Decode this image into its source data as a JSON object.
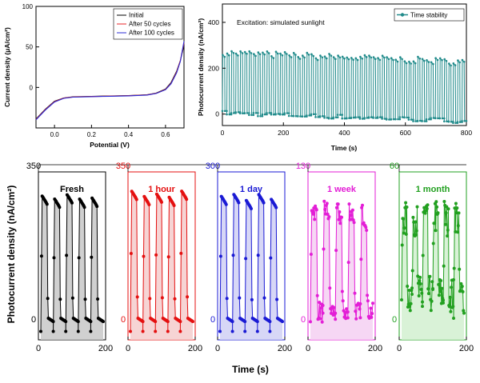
{
  "chart_data": [
    {
      "type": "line",
      "xlabel": "Potential (V)",
      "ylabel": "Current density (μA/cm²)",
      "xlim": [
        -0.1,
        0.7
      ],
      "ylim": [
        -50,
        100
      ],
      "xticks": [
        "0.0",
        "0.2",
        "0.4",
        "0.6"
      ],
      "xtick_values": [
        0.0,
        0.2,
        0.4,
        0.6
      ],
      "yticks": [
        "0",
        "50",
        "100"
      ],
      "ytick_values": [
        0,
        50,
        100
      ],
      "legend_position": "top-right",
      "series": [
        {
          "name": "Initial",
          "color": "#000000",
          "x": [
            -0.1,
            -0.05,
            0.0,
            0.05,
            0.1,
            0.2,
            0.3,
            0.4,
            0.5,
            0.55,
            0.6,
            0.63,
            0.66,
            0.68,
            0.7
          ],
          "y": [
            -39,
            -27,
            -17,
            -13,
            -11.5,
            -11,
            -10.5,
            -10,
            -9,
            -7,
            -2,
            6,
            20,
            33,
            52
          ]
        },
        {
          "name": "After 50 cycles",
          "color": "#e8262a",
          "x": [
            -0.1,
            -0.05,
            0.0,
            0.05,
            0.1,
            0.2,
            0.3,
            0.4,
            0.5,
            0.55,
            0.6,
            0.63,
            0.66,
            0.68,
            0.7
          ],
          "y": [
            -39.5,
            -27.5,
            -17.5,
            -13.2,
            -11.8,
            -11.2,
            -10.7,
            -10.2,
            -9.2,
            -7.3,
            -2.5,
            5,
            19,
            33,
            55
          ]
        },
        {
          "name": "After 100 cycles",
          "color": "#2b2bd6",
          "x": [
            -0.1,
            -0.05,
            0.0,
            0.05,
            0.1,
            0.2,
            0.3,
            0.4,
            0.5,
            0.55,
            0.6,
            0.63,
            0.66,
            0.68,
            0.7
          ],
          "y": [
            -40,
            -28,
            -18,
            -13.5,
            -12,
            -11.4,
            -10.9,
            -10.4,
            -9.4,
            -7.5,
            -2.8,
            4.5,
            18,
            32,
            57
          ]
        }
      ]
    },
    {
      "type": "line",
      "xlabel": "Time (s)",
      "ylabel": "Photocurrent density (nA/cm²)",
      "annotation": "Excitation: simulated sunlight",
      "xlim": [
        0,
        800
      ],
      "ylim": [
        -50,
        480
      ],
      "xticks": [
        "0",
        "200",
        "400",
        "600",
        "800"
      ],
      "xtick_values": [
        0,
        200,
        400,
        600,
        800
      ],
      "yticks": [
        "0",
        "200",
        "400"
      ],
      "ytick_values": [
        0,
        200,
        400
      ],
      "legend_position": "top-right",
      "cycles": 55,
      "on_level_start": 270,
      "on_level_end": 230,
      "off_level_start": 5,
      "off_level_end": -30,
      "series": [
        {
          "name": "Time stability",
          "color": "#1f8a8a"
        }
      ]
    }
  ],
  "bottom": {
    "xlabel": "Time (s)",
    "ylabel": "Photocurrent density (nA/cm²)",
    "xlim": [
      0,
      200
    ],
    "xticks": [
      "0",
      "200"
    ],
    "panels": [
      {
        "label": "Fresh",
        "ymax_label": "350",
        "zero_label": "0",
        "color": "#000000",
        "fill": "#c8c8c8",
        "cycles": 5,
        "mode": "regular",
        "top": 0.85,
        "bottom": 0.05
      },
      {
        "label": "1 hour",
        "ymax_label": "350",
        "zero_label": "0",
        "color": "#e41010",
        "fill": "#f5cccc",
        "cycles": 5,
        "mode": "regular",
        "top": 0.87,
        "bottom": 0.05
      },
      {
        "label": "1 day",
        "ymax_label": "300",
        "zero_label": "0",
        "color": "#1a1ad4",
        "fill": "#d0d0f5",
        "cycles": 5,
        "mode": "regular",
        "top": 0.85,
        "bottom": 0.05
      },
      {
        "label": "1 week",
        "ymax_label": "130",
        "zero_label": "0",
        "color": "#e31ed6",
        "fill": "#f5d0f2",
        "cycles": 5,
        "mode": "noisy",
        "top": 0.78,
        "bottom": 0.1
      },
      {
        "label": "1 month",
        "ymax_label": "60",
        "zero_label": "0",
        "color": "#22a020",
        "fill": "#d2f0d0",
        "cycles": 6,
        "mode": "very-noisy",
        "top": 0.75,
        "bottom": 0.2
      }
    ]
  }
}
